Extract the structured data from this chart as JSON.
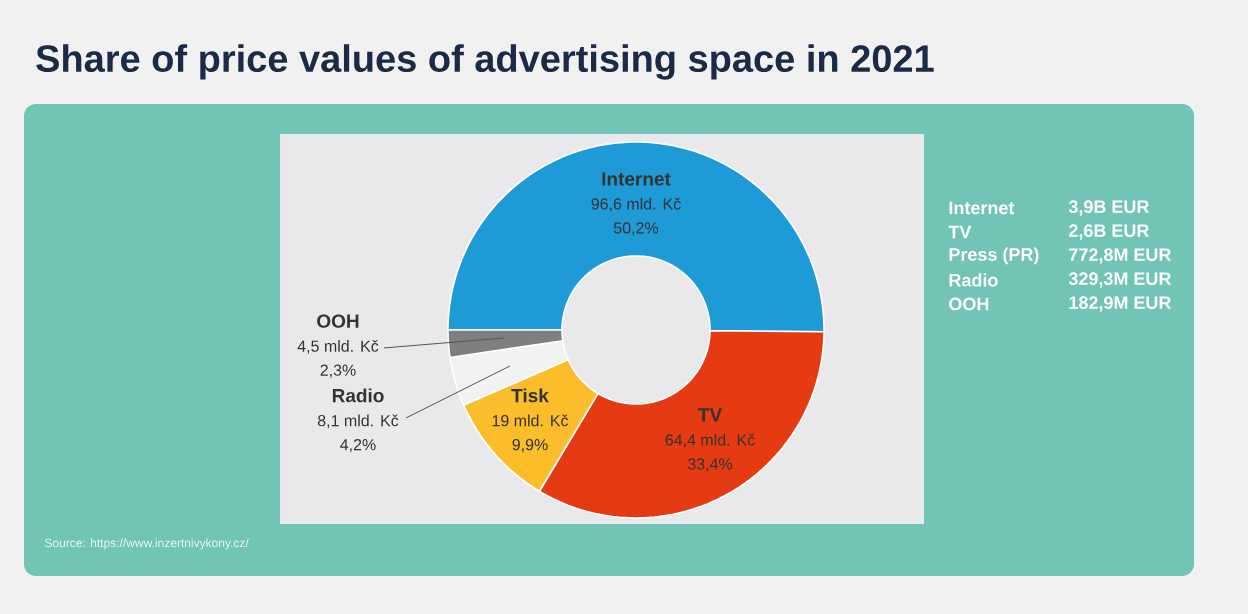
{
  "chart_data": {
    "type": "donut",
    "title": "Share of price values of advertising space in 2021",
    "categories": [
      "Internet",
      "TV",
      "Tisk",
      "Radio",
      "OOH"
    ],
    "values": [
      96.6,
      64.4,
      19,
      8.1,
      4.5
    ],
    "colors": [
      "#1e9bd7",
      "#e63b12",
      "#fbbd2a",
      "#f2f2f2",
      "#7f7f7f"
    ],
    "value_labels": [
      "96,6 mld. Kč",
      "64,4 mld. Kč",
      "19 mld. Kč",
      "8,1 mld. Kč",
      "4,5 mld. Kč"
    ],
    "annotations": [
      "50,2%",
      "33,4%",
      "9,9%",
      "4,2%",
      "2,3%",
      "Internet",
      "3,9B EUR",
      "TV",
      "2,6B EUR",
      "Press (PR)",
      "772,8M EUR",
      "Radio",
      "329,3M EUR",
      "OOH",
      "182,9M EUR",
      "Source: https://www.inzertnivykony.cz/"
    ]
  }
}
